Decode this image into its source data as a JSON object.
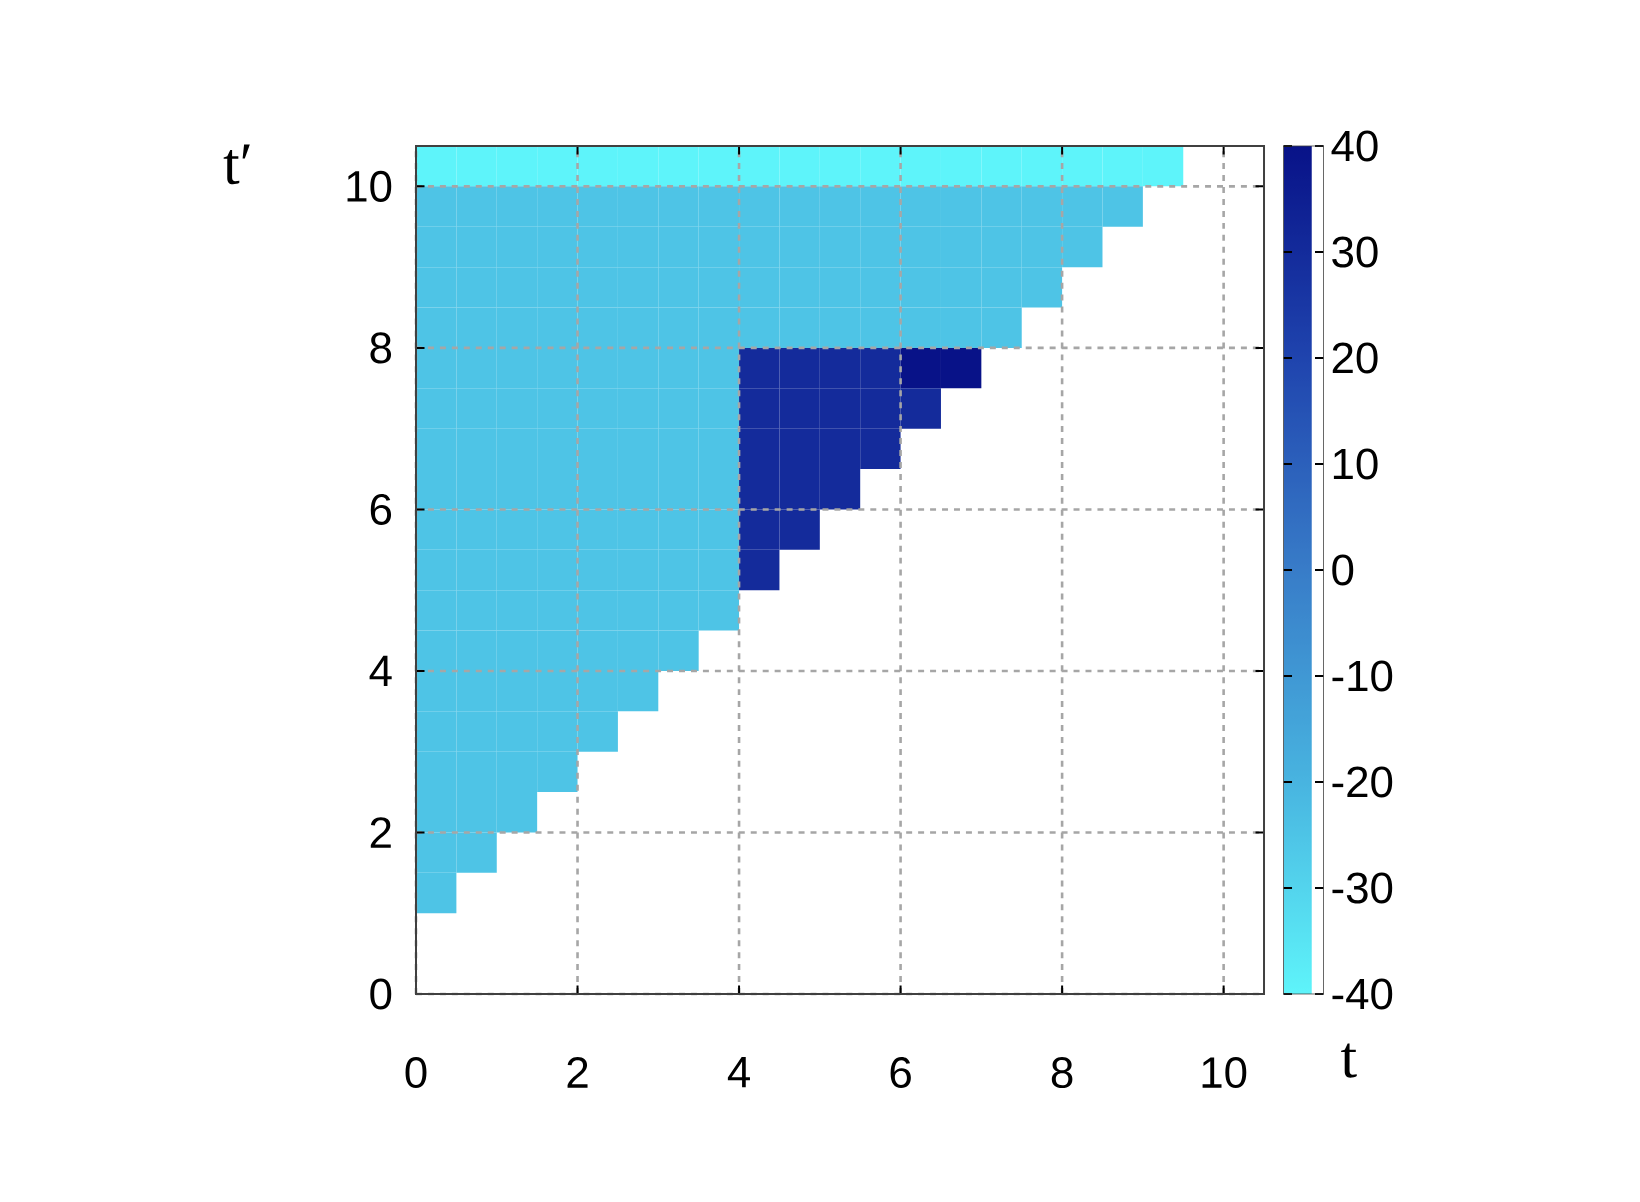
{
  "chart_data": {
    "type": "heatmap",
    "xlabel": "t",
    "ylabel": "t′",
    "x": [
      0.25,
      0.75,
      1.25,
      1.75,
      2.25,
      2.75,
      3.25,
      3.75,
      4.25,
      4.75,
      5.25,
      5.75,
      6.25,
      6.75,
      7.25,
      7.75,
      8.25,
      8.75,
      9.25,
      9.75,
      10.25
    ],
    "y": [
      10.25,
      9.75,
      9.25,
      8.75,
      8.25,
      7.75,
      7.25,
      6.75,
      6.25,
      5.75,
      5.25,
      4.75,
      4.25,
      3.75,
      3.25,
      2.75,
      2.25,
      1.75,
      1.25
    ],
    "xlim": [
      0,
      10.5
    ],
    "ylim": [
      0,
      10.5
    ],
    "xticks": [
      0,
      2,
      4,
      6,
      8,
      10
    ],
    "yticks": [
      0,
      2,
      4,
      6,
      8,
      10
    ],
    "clim": [
      -40,
      40
    ],
    "cticks": [
      -40,
      -30,
      -20,
      -10,
      0,
      10,
      20,
      30,
      40
    ],
    "grid": true,
    "cells": [
      [
        -40,
        -40,
        -40,
        -40,
        -40,
        -40,
        -40,
        -40,
        -40,
        -40,
        -40,
        -40,
        -40,
        -40,
        -40,
        -40,
        -40,
        -40,
        -40,
        null,
        null
      ],
      [
        -25,
        -25,
        -25,
        -25,
        -25,
        -25,
        -25,
        -25,
        -25,
        -25,
        -25,
        -25,
        -25,
        -25,
        -25,
        -25,
        -25,
        -25,
        null,
        null,
        null
      ],
      [
        -25,
        -25,
        -25,
        -25,
        -25,
        -25,
        -25,
        -25,
        -25,
        -25,
        -25,
        -25,
        -25,
        -25,
        -25,
        -25,
        -25,
        null,
        null,
        null,
        null
      ],
      [
        -25,
        -25,
        -25,
        -25,
        -25,
        -25,
        -25,
        -25,
        -25,
        -25,
        -25,
        -25,
        -25,
        -25,
        -25,
        -25,
        null,
        null,
        null,
        null,
        null
      ],
      [
        -25,
        -25,
        -25,
        -25,
        -25,
        -25,
        -25,
        -25,
        -25,
        -25,
        -25,
        -25,
        -25,
        -25,
        -25,
        null,
        null,
        null,
        null,
        null,
        null
      ],
      [
        -25,
        -25,
        -25,
        -25,
        -25,
        -25,
        -25,
        -25,
        30,
        30,
        30,
        30,
        40,
        40,
        null,
        null,
        null,
        null,
        null,
        null,
        null
      ],
      [
        -25,
        -25,
        -25,
        -25,
        -25,
        -25,
        -25,
        -25,
        30,
        30,
        30,
        30,
        30,
        null,
        null,
        null,
        null,
        null,
        null,
        null,
        null
      ],
      [
        -25,
        -25,
        -25,
        -25,
        -25,
        -25,
        -25,
        -25,
        30,
        30,
        30,
        30,
        null,
        null,
        null,
        null,
        null,
        null,
        null,
        null,
        null
      ],
      [
        -25,
        -25,
        -25,
        -25,
        -25,
        -25,
        -25,
        -25,
        30,
        30,
        30,
        null,
        null,
        null,
        null,
        null,
        null,
        null,
        null,
        null,
        null
      ],
      [
        -25,
        -25,
        -25,
        -25,
        -25,
        -25,
        -25,
        -25,
        30,
        30,
        null,
        null,
        null,
        null,
        null,
        null,
        null,
        null,
        null,
        null,
        null
      ],
      [
        -25,
        -25,
        -25,
        -25,
        -25,
        -25,
        -25,
        -25,
        30,
        null,
        null,
        null,
        null,
        null,
        null,
        null,
        null,
        null,
        null,
        null,
        null
      ],
      [
        -25,
        -25,
        -25,
        -25,
        -25,
        -25,
        -25,
        -25,
        null,
        null,
        null,
        null,
        null,
        null,
        null,
        null,
        null,
        null,
        null,
        null,
        null
      ],
      [
        -25,
        -25,
        -25,
        -25,
        -25,
        -25,
        -25,
        null,
        null,
        null,
        null,
        null,
        null,
        null,
        null,
        null,
        null,
        null,
        null,
        null,
        null
      ],
      [
        -25,
        -25,
        -25,
        -25,
        -25,
        -25,
        null,
        null,
        null,
        null,
        null,
        null,
        null,
        null,
        null,
        null,
        null,
        null,
        null,
        null,
        null
      ],
      [
        -25,
        -25,
        -25,
        -25,
        -25,
        null,
        null,
        null,
        null,
        null,
        null,
        null,
        null,
        null,
        null,
        null,
        null,
        null,
        null,
        null,
        null
      ],
      [
        -25,
        -25,
        -25,
        -25,
        null,
        null,
        null,
        null,
        null,
        null,
        null,
        null,
        null,
        null,
        null,
        null,
        null,
        null,
        null,
        null,
        null
      ],
      [
        -25,
        -25,
        -25,
        null,
        null,
        null,
        null,
        null,
        null,
        null,
        null,
        null,
        null,
        null,
        null,
        null,
        null,
        null,
        null,
        null,
        null
      ],
      [
        -25,
        -25,
        null,
        null,
        null,
        null,
        null,
        null,
        null,
        null,
        null,
        null,
        null,
        null,
        null,
        null,
        null,
        null,
        null,
        null,
        null
      ],
      [
        -25,
        null,
        null,
        null,
        null,
        null,
        null,
        null,
        null,
        null,
        null,
        null,
        null,
        null,
        null,
        null,
        null,
        null,
        null,
        null,
        null
      ]
    ]
  }
}
